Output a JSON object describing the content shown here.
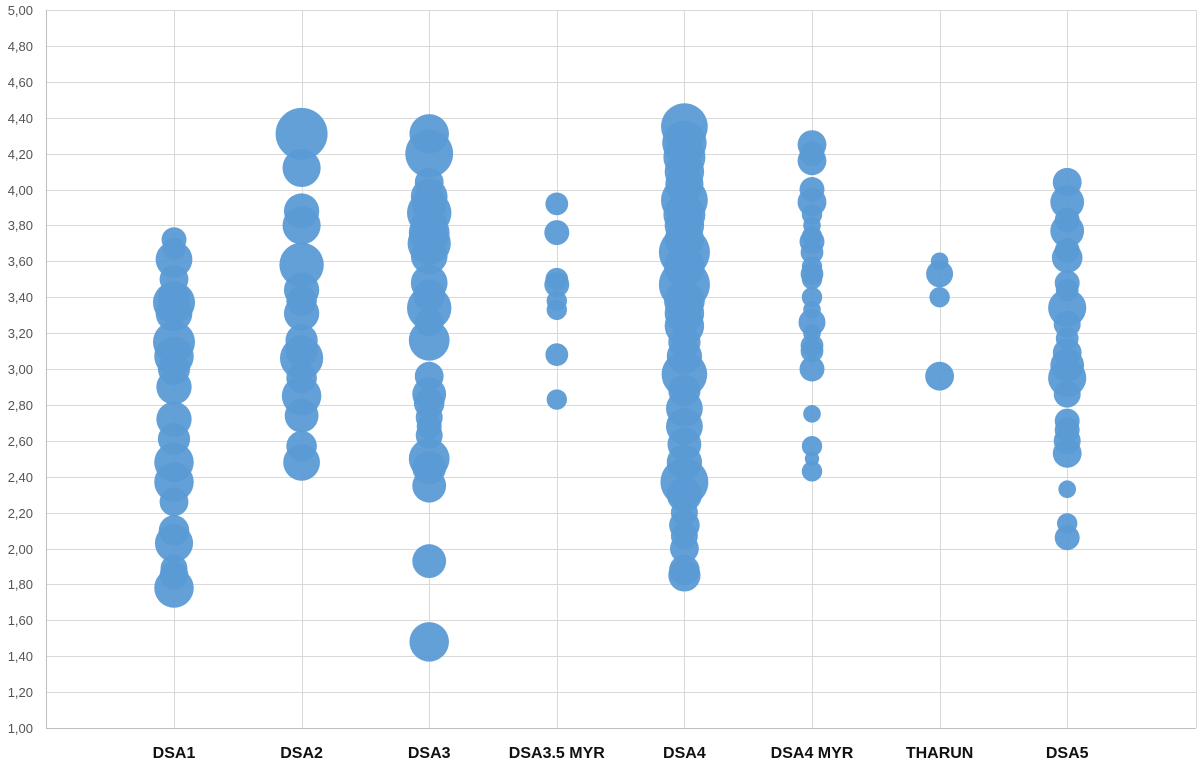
{
  "chart_data": {
    "type": "scatter",
    "subtype": "bubble",
    "title": "",
    "xlabel": "",
    "ylabel": "",
    "categories": [
      "DSA1",
      "DSA2",
      "DSA3",
      "DSA3.5 MYR",
      "DSA4",
      "DSA4 MYR",
      "THARUN",
      "DSA5"
    ],
    "ylim": [
      1.0,
      5.0
    ],
    "yticks": [
      "1,00",
      "1,20",
      "1,40",
      "1,60",
      "1,80",
      "2,00",
      "2,20",
      "2,40",
      "2,60",
      "2,80",
      "3,00",
      "3,20",
      "3,40",
      "3,60",
      "3,80",
      "4,00",
      "4,20",
      "4,40",
      "4,60",
      "4,80",
      "5,00"
    ],
    "grid": true,
    "legend": "none",
    "color": "#5b9bd5",
    "size_unit": "relative bubble size",
    "series": [
      {
        "category": "DSA1",
        "points": [
          {
            "y": 3.72,
            "size": 6
          },
          {
            "y": 3.67,
            "size": 5
          },
          {
            "y": 3.61,
            "size": 13
          },
          {
            "y": 3.5,
            "size": 8
          },
          {
            "y": 3.4,
            "size": 10
          },
          {
            "y": 3.37,
            "size": 17
          },
          {
            "y": 3.31,
            "size": 13
          },
          {
            "y": 3.15,
            "size": 17
          },
          {
            "y": 3.07,
            "size": 15
          },
          {
            "y": 3.0,
            "size": 10
          },
          {
            "y": 2.9,
            "size": 12
          },
          {
            "y": 2.72,
            "size": 12
          },
          {
            "y": 2.61,
            "size": 10
          },
          {
            "y": 2.48,
            "size": 15
          },
          {
            "y": 2.37,
            "size": 15
          },
          {
            "y": 2.26,
            "size": 8
          },
          {
            "y": 2.1,
            "size": 9
          },
          {
            "y": 2.03,
            "size": 14
          },
          {
            "y": 1.89,
            "size": 7
          },
          {
            "y": 1.85,
            "size": 8
          },
          {
            "y": 1.78,
            "size": 15
          }
        ]
      },
      {
        "category": "DSA2",
        "points": [
          {
            "y": 4.31,
            "size": 26
          },
          {
            "y": 4.12,
            "size": 14
          },
          {
            "y": 3.88,
            "size": 12
          },
          {
            "y": 3.8,
            "size": 14
          },
          {
            "y": 3.58,
            "size": 19
          },
          {
            "y": 3.44,
            "size": 12
          },
          {
            "y": 3.38,
            "size": 9
          },
          {
            "y": 3.31,
            "size": 12
          },
          {
            "y": 3.16,
            "size": 10
          },
          {
            "y": 3.1,
            "size": 10
          },
          {
            "y": 3.06,
            "size": 18
          },
          {
            "y": 2.95,
            "size": 9
          },
          {
            "y": 2.85,
            "size": 15
          },
          {
            "y": 2.74,
            "size": 11
          },
          {
            "y": 2.57,
            "size": 9
          },
          {
            "y": 2.48,
            "size": 13
          }
        ]
      },
      {
        "category": "DSA3",
        "points": [
          {
            "y": 4.31,
            "size": 15
          },
          {
            "y": 4.2,
            "size": 22
          },
          {
            "y": 4.04,
            "size": 8
          },
          {
            "y": 3.96,
            "size": 13
          },
          {
            "y": 3.92,
            "size": 12
          },
          {
            "y": 3.87,
            "size": 19
          },
          {
            "y": 3.8,
            "size": 13
          },
          {
            "y": 3.76,
            "size": 16
          },
          {
            "y": 3.7,
            "size": 18
          },
          {
            "y": 3.63,
            "size": 13
          },
          {
            "y": 3.48,
            "size": 13
          },
          {
            "y": 3.41,
            "size": 10
          },
          {
            "y": 3.34,
            "size": 19
          },
          {
            "y": 3.26,
            "size": 8
          },
          {
            "y": 3.16,
            "size": 16
          },
          {
            "y": 2.96,
            "size": 8
          },
          {
            "y": 2.86,
            "size": 11
          },
          {
            "y": 2.81,
            "size": 9
          },
          {
            "y": 2.73,
            "size": 7
          },
          {
            "y": 2.68,
            "size": 6
          },
          {
            "y": 2.63,
            "size": 7
          },
          {
            "y": 2.5,
            "size": 16
          },
          {
            "y": 2.45,
            "size": 11
          },
          {
            "y": 2.35,
            "size": 11
          },
          {
            "y": 1.93,
            "size": 11
          },
          {
            "y": 1.48,
            "size": 15
          }
        ]
      },
      {
        "category": "DSA3.5 MYR",
        "points": [
          {
            "y": 3.92,
            "size": 5
          },
          {
            "y": 3.76,
            "size": 6
          },
          {
            "y": 3.5,
            "size": 5
          },
          {
            "y": 3.47,
            "size": 6
          },
          {
            "y": 3.38,
            "size": 4
          },
          {
            "y": 3.33,
            "size": 4
          },
          {
            "y": 3.08,
            "size": 5
          },
          {
            "y": 2.83,
            "size": 4
          }
        ]
      },
      {
        "category": "DSA4",
        "points": [
          {
            "y": 4.35,
            "size": 21
          },
          {
            "y": 4.26,
            "size": 19
          },
          {
            "y": 4.18,
            "size": 17
          },
          {
            "y": 4.1,
            "size": 15
          },
          {
            "y": 4.03,
            "size": 14
          },
          {
            "y": 3.94,
            "size": 21
          },
          {
            "y": 3.86,
            "size": 17
          },
          {
            "y": 3.8,
            "size": 15
          },
          {
            "y": 3.72,
            "size": 15
          },
          {
            "y": 3.65,
            "size": 25
          },
          {
            "y": 3.57,
            "size": 16
          },
          {
            "y": 3.47,
            "size": 25
          },
          {
            "y": 3.38,
            "size": 16
          },
          {
            "y": 3.31,
            "size": 15
          },
          {
            "y": 3.24,
            "size": 15
          },
          {
            "y": 3.15,
            "size": 10
          },
          {
            "y": 3.07,
            "size": 12
          },
          {
            "y": 2.97,
            "size": 20
          },
          {
            "y": 2.88,
            "size": 10
          },
          {
            "y": 2.78,
            "size": 13
          },
          {
            "y": 2.68,
            "size": 13
          },
          {
            "y": 2.58,
            "size": 11
          },
          {
            "y": 2.48,
            "size": 12
          },
          {
            "y": 2.37,
            "size": 22
          },
          {
            "y": 2.3,
            "size": 12
          },
          {
            "y": 2.2,
            "size": 7
          },
          {
            "y": 2.13,
            "size": 9
          },
          {
            "y": 2.07,
            "size": 7
          },
          {
            "y": 2.0,
            "size": 8
          },
          {
            "y": 1.88,
            "size": 9
          },
          {
            "y": 1.85,
            "size": 10
          }
        ]
      },
      {
        "category": "DSA4 MYR",
        "points": [
          {
            "y": 4.25,
            "size": 8
          },
          {
            "y": 4.2,
            "size": 6
          },
          {
            "y": 4.16,
            "size": 8
          },
          {
            "y": 4.0,
            "size": 6
          },
          {
            "y": 3.93,
            "size": 8
          },
          {
            "y": 3.86,
            "size": 4
          },
          {
            "y": 3.8,
            "size": 3
          },
          {
            "y": 3.74,
            "size": 4
          },
          {
            "y": 3.71,
            "size": 6
          },
          {
            "y": 3.65,
            "size": 5
          },
          {
            "y": 3.57,
            "size": 4
          },
          {
            "y": 3.53,
            "size": 5
          },
          {
            "y": 3.5,
            "size": 4
          },
          {
            "y": 3.4,
            "size": 4
          },
          {
            "y": 3.33,
            "size": 3
          },
          {
            "y": 3.26,
            "size": 7
          },
          {
            "y": 3.2,
            "size": 3
          },
          {
            "y": 3.13,
            "size": 5
          },
          {
            "y": 3.1,
            "size": 5
          },
          {
            "y": 3.0,
            "size": 6
          },
          {
            "y": 2.75,
            "size": 3
          },
          {
            "y": 2.57,
            "size": 4
          },
          {
            "y": 2.5,
            "size": 2
          },
          {
            "y": 2.43,
            "size": 4
          }
        ]
      },
      {
        "category": "THARUN",
        "points": [
          {
            "y": 3.6,
            "size": 3
          },
          {
            "y": 3.53,
            "size": 7
          },
          {
            "y": 3.4,
            "size": 4
          },
          {
            "y": 2.96,
            "size": 8
          }
        ]
      },
      {
        "category": "DSA5",
        "points": [
          {
            "y": 4.04,
            "size": 8
          },
          {
            "y": 3.93,
            "size": 11
          },
          {
            "y": 3.83,
            "size": 6
          },
          {
            "y": 3.77,
            "size": 11
          },
          {
            "y": 3.66,
            "size": 6
          },
          {
            "y": 3.62,
            "size": 9
          },
          {
            "y": 3.48,
            "size": 6
          },
          {
            "y": 3.44,
            "size": 5
          },
          {
            "y": 3.34,
            "size": 14
          },
          {
            "y": 3.25,
            "size": 7
          },
          {
            "y": 3.17,
            "size": 5
          },
          {
            "y": 3.09,
            "size": 8
          },
          {
            "y": 3.02,
            "size": 11
          },
          {
            "y": 2.95,
            "size": 14
          },
          {
            "y": 2.86,
            "size": 7
          },
          {
            "y": 2.71,
            "size": 6
          },
          {
            "y": 2.66,
            "size": 6
          },
          {
            "y": 2.6,
            "size": 7
          },
          {
            "y": 2.53,
            "size": 8
          },
          {
            "y": 2.33,
            "size": 3
          },
          {
            "y": 2.14,
            "size": 4
          },
          {
            "y": 2.06,
            "size": 6
          }
        ]
      }
    ]
  }
}
